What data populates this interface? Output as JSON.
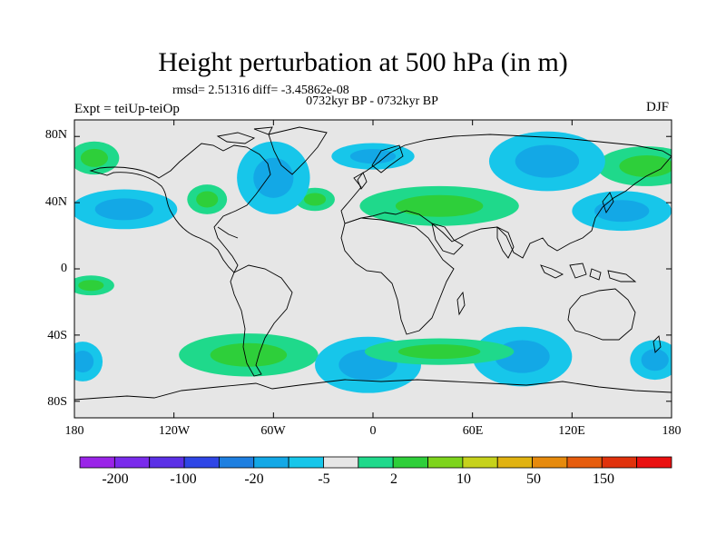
{
  "title": "Height perturbation at 500 hPa (in m)",
  "stats": "rmsd= 2.51316 diff= -3.45862e-08",
  "subtitle": "0732kyr BP - 0732kyr BP",
  "experiment": "Expt = teiUp-teiOp",
  "season": "DJF",
  "axes": {
    "lat_labels": [
      "80N",
      "40N",
      "0",
      "40S",
      "80S"
    ],
    "lon_labels": [
      "180",
      "120W",
      "60W",
      "0",
      "60E",
      "120E",
      "180"
    ]
  },
  "colorbar": {
    "labels": [
      "-200",
      "-100",
      "-20",
      "-5",
      "2",
      "10",
      "50",
      "150"
    ],
    "colors": [
      "#9a24e8",
      "#7a2bec",
      "#5b30e6",
      "#2f46e6",
      "#1e7fe0",
      "#13a8e6",
      "#17c6ea",
      "#e6e6e6",
      "#1fd98b",
      "#2ecf3a",
      "#7dd41c",
      "#c6d21b",
      "#e0b211",
      "#e68a0d",
      "#e65c0d",
      "#e0320c",
      "#ea1010"
    ]
  },
  "chart_data": {
    "type": "heatmap",
    "title": "Height perturbation at 500 hPa (in m)",
    "variable": "500 hPa geopotential height perturbation",
    "units": "m",
    "season": "DJF",
    "xlabel": "",
    "ylabel": "",
    "xlim": [
      -180,
      180
    ],
    "ylim": [
      -90,
      90
    ],
    "x_ticks": [
      -180,
      -120,
      -60,
      0,
      60,
      120,
      180
    ],
    "y_ticks": [
      80,
      40,
      0,
      -40,
      -80
    ],
    "levels": [
      -200,
      -100,
      -20,
      -5,
      2,
      10,
      50,
      150
    ],
    "features": [
      {
        "label": "positive",
        "lon": -168,
        "lat": 67,
        "rx": 15,
        "ry": 10
      },
      {
        "label": "positive",
        "lon": -100,
        "lat": 42,
        "rx": 12,
        "ry": 9
      },
      {
        "label": "positive",
        "lon": -35,
        "lat": 42,
        "rx": 12,
        "ry": 7
      },
      {
        "label": "positive",
        "lon": 40,
        "lat": 38,
        "rx": 48,
        "ry": 12
      },
      {
        "label": "positive",
        "lon": 165,
        "lat": 62,
        "rx": 30,
        "ry": 12
      },
      {
        "label": "negative",
        "lon": -150,
        "lat": 36,
        "rx": 32,
        "ry": 12
      },
      {
        "label": "negative",
        "lon": -60,
        "lat": 55,
        "rx": 22,
        "ry": 22
      },
      {
        "label": "negative",
        "lon": 0,
        "lat": 68,
        "rx": 25,
        "ry": 8
      },
      {
        "label": "negative",
        "lon": 105,
        "lat": 65,
        "rx": 35,
        "ry": 18
      },
      {
        "label": "negative",
        "lon": 150,
        "lat": 35,
        "rx": 30,
        "ry": 12
      },
      {
        "label": "positive",
        "lon": -75,
        "lat": -52,
        "rx": 42,
        "ry": 13
      },
      {
        "label": "negative",
        "lon": -175,
        "lat": -56,
        "rx": 12,
        "ry": 12
      },
      {
        "label": "negative",
        "lon": -3,
        "lat": -58,
        "rx": 32,
        "ry": 17
      },
      {
        "label": "negative",
        "lon": 90,
        "lat": -53,
        "rx": 30,
        "ry": 18
      },
      {
        "label": "negative",
        "lon": 170,
        "lat": -55,
        "rx": 15,
        "ry": 12
      },
      {
        "label": "positive",
        "lon": -170,
        "lat": -10,
        "rx": 14,
        "ry": 6
      },
      {
        "label": "positive",
        "lon": 40,
        "lat": -50,
        "rx": 45,
        "ry": 8
      }
    ]
  }
}
